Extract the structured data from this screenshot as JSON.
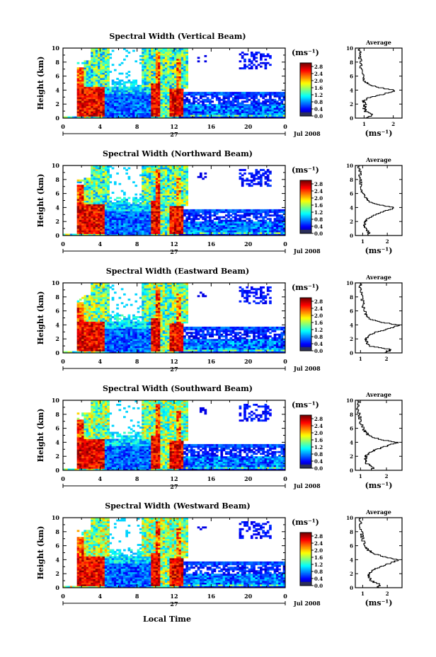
{
  "figure": {
    "bottom_label": "Local Time",
    "date_label": "Jul 2008",
    "date_day": "27"
  },
  "chart_data": [
    {
      "type": "heatmap",
      "title": "Spectral Width (Vertical Beam)",
      "xlabel": "",
      "ylabel": "Height (km)",
      "xlim": [
        0,
        24
      ],
      "ylim": [
        0,
        10
      ],
      "xticks": [
        "0",
        "4",
        "8",
        "12",
        "16",
        "20",
        "0"
      ],
      "yticks": [
        "0",
        "2",
        "4",
        "6",
        "8",
        "10"
      ],
      "colorbar": {
        "label": "(ms⁻¹)",
        "ticks": [
          "0.0",
          "0.4",
          "0.8",
          "1.2",
          "1.6",
          "2.0",
          "2.4",
          "2.8"
        ],
        "range": [
          0,
          3.0
        ]
      },
      "average": {
        "title": "Average",
        "xlabel": "(ms⁻¹)",
        "xlim": [
          0.7,
          2.3
        ],
        "xticks": [
          "1",
          "2"
        ],
        "yticks": [
          "0",
          "2",
          "4",
          "6",
          "8",
          "10"
        ],
        "height": [
          0,
          0.5,
          1,
          1.5,
          2,
          2.5,
          3,
          3.5,
          4,
          4.5,
          5,
          5.5,
          6,
          7,
          8,
          9,
          10
        ],
        "value": [
          1.1,
          1.3,
          1.05,
          1.0,
          1.05,
          1.0,
          1.2,
          1.7,
          2.05,
          1.4,
          1.1,
          1.0,
          0.95,
          0.9,
          0.9,
          0.85,
          0.85
        ]
      }
    },
    {
      "type": "heatmap",
      "title": "Spectral Width (Northward Beam)",
      "xlabel": "",
      "ylabel": "Height (km)",
      "xlim": [
        0,
        24
      ],
      "ylim": [
        0,
        10
      ],
      "xticks": [
        "0",
        "4",
        "8",
        "12",
        "16",
        "20",
        "0"
      ],
      "yticks": [
        "0",
        "2",
        "4",
        "6",
        "8",
        "10"
      ],
      "colorbar": {
        "label": "(ms⁻¹)",
        "ticks": [
          "0.0",
          "0.4",
          "0.8",
          "1.2",
          "1.6",
          "2.0",
          "2.4",
          "2.8"
        ],
        "range": [
          0,
          3.0
        ]
      },
      "average": {
        "title": "Average",
        "xlabel": "(ms⁻¹)",
        "xlim": [
          0.7,
          2.6
        ],
        "xticks": [
          "1",
          "2"
        ],
        "yticks": [
          "0",
          "2",
          "4",
          "6",
          "8",
          "10"
        ],
        "height": [
          0,
          0.5,
          1,
          1.5,
          2,
          2.5,
          3,
          3.5,
          4,
          4.5,
          5,
          5.5,
          6,
          7,
          8,
          9,
          10
        ],
        "value": [
          1.2,
          1.25,
          1.1,
          1.05,
          1.1,
          1.2,
          1.5,
          1.9,
          2.3,
          1.6,
          1.2,
          1.1,
          1.0,
          0.95,
          0.9,
          0.9,
          0.85
        ]
      }
    },
    {
      "type": "heatmap",
      "title": "Spectral Width (Eastward Beam)",
      "xlabel": "",
      "ylabel": "Height (km)",
      "xlim": [
        0,
        24
      ],
      "ylim": [
        0,
        10
      ],
      "xticks": [
        "0",
        "4",
        "8",
        "12",
        "16",
        "20",
        "0"
      ],
      "yticks": [
        "0",
        "2",
        "4",
        "6",
        "8",
        "10"
      ],
      "colorbar": {
        "label": "(ms⁻¹)",
        "ticks": [
          "0.0",
          "0.4",
          "0.8",
          "1.2",
          "1.6",
          "2.0",
          "2.4",
          "2.8"
        ],
        "range": [
          0,
          3.0
        ]
      },
      "average": {
        "title": "Average",
        "xlabel": "",
        "xlim": [
          0.8,
          2.6
        ],
        "xticks": [
          "1",
          "2"
        ],
        "yticks": [
          "0",
          "2",
          "4",
          "6",
          "8",
          "10"
        ],
        "height": [
          0,
          0.5,
          1,
          1.5,
          2,
          2.5,
          3,
          3.5,
          4,
          4.5,
          5,
          5.5,
          6,
          7,
          8,
          9,
          10
        ],
        "value": [
          1.9,
          2.2,
          1.4,
          1.25,
          1.2,
          1.3,
          1.6,
          2.1,
          2.45,
          1.7,
          1.3,
          1.2,
          1.15,
          1.1,
          1.05,
          1.0,
          1.0
        ]
      }
    },
    {
      "type": "heatmap",
      "title": "Spectral Width (Southward Beam)",
      "xlabel": "",
      "ylabel": "Height (km)",
      "xlim": [
        0,
        24
      ],
      "ylim": [
        0,
        10
      ],
      "xticks": [
        "0",
        "4",
        "8",
        "12",
        "16",
        "20",
        "0"
      ],
      "yticks": [
        "0",
        "2",
        "4",
        "6",
        "8",
        "10"
      ],
      "colorbar": {
        "label": "(ms⁻¹)",
        "ticks": [
          "0.0",
          "0.4",
          "0.8",
          "1.2",
          "1.6",
          "2.0",
          "2.4",
          "2.8"
        ],
        "range": [
          0,
          3.0
        ]
      },
      "average": {
        "title": "Average",
        "xlabel": "(ms⁻¹)",
        "xlim": [
          0.8,
          2.6
        ],
        "xticks": [
          "1",
          "2"
        ],
        "yticks": [
          "0",
          "2",
          "4",
          "6",
          "8",
          "10"
        ],
        "height": [
          0,
          0.5,
          1,
          1.5,
          2,
          2.5,
          3,
          3.5,
          4,
          4.5,
          5,
          5.5,
          6,
          7,
          8,
          9,
          10
        ],
        "value": [
          1.45,
          1.5,
          1.25,
          1.2,
          1.2,
          1.3,
          1.6,
          2.0,
          2.4,
          1.7,
          1.3,
          1.2,
          1.1,
          1.0,
          0.95,
          0.9,
          0.9
        ]
      }
    },
    {
      "type": "heatmap",
      "title": "Spectral Width (Westward Beam)",
      "xlabel": "Local Time",
      "ylabel": "Height (km)",
      "xlim": [
        0,
        24
      ],
      "ylim": [
        0,
        10
      ],
      "xticks": [
        "0",
        "4",
        "8",
        "12",
        "16",
        "20",
        "0"
      ],
      "yticks": [
        "0",
        "2",
        "4",
        "6",
        "8",
        "10"
      ],
      "colorbar": {
        "label": "(ms⁻¹)",
        "ticks": [
          "0.0",
          "0.4",
          "0.8",
          "1.2",
          "1.6",
          "2.0",
          "2.4",
          "2.8"
        ],
        "range": [
          0,
          3.0
        ]
      },
      "average": {
        "title": "Average",
        "xlabel": "(ms⁻¹)",
        "xlim": [
          0.7,
          2.6
        ],
        "xticks": [
          "1",
          "2"
        ],
        "yticks": [
          "0",
          "2",
          "4",
          "6",
          "8",
          "10"
        ],
        "height": [
          0,
          0.5,
          1,
          1.5,
          2,
          2.5,
          3,
          3.5,
          4,
          4.5,
          5,
          5.5,
          6,
          7,
          8,
          9,
          10
        ],
        "value": [
          1.6,
          1.7,
          1.35,
          1.25,
          1.25,
          1.35,
          1.7,
          2.1,
          2.45,
          1.8,
          1.4,
          1.2,
          1.1,
          1.0,
          0.95,
          0.9,
          0.9
        ]
      }
    }
  ]
}
